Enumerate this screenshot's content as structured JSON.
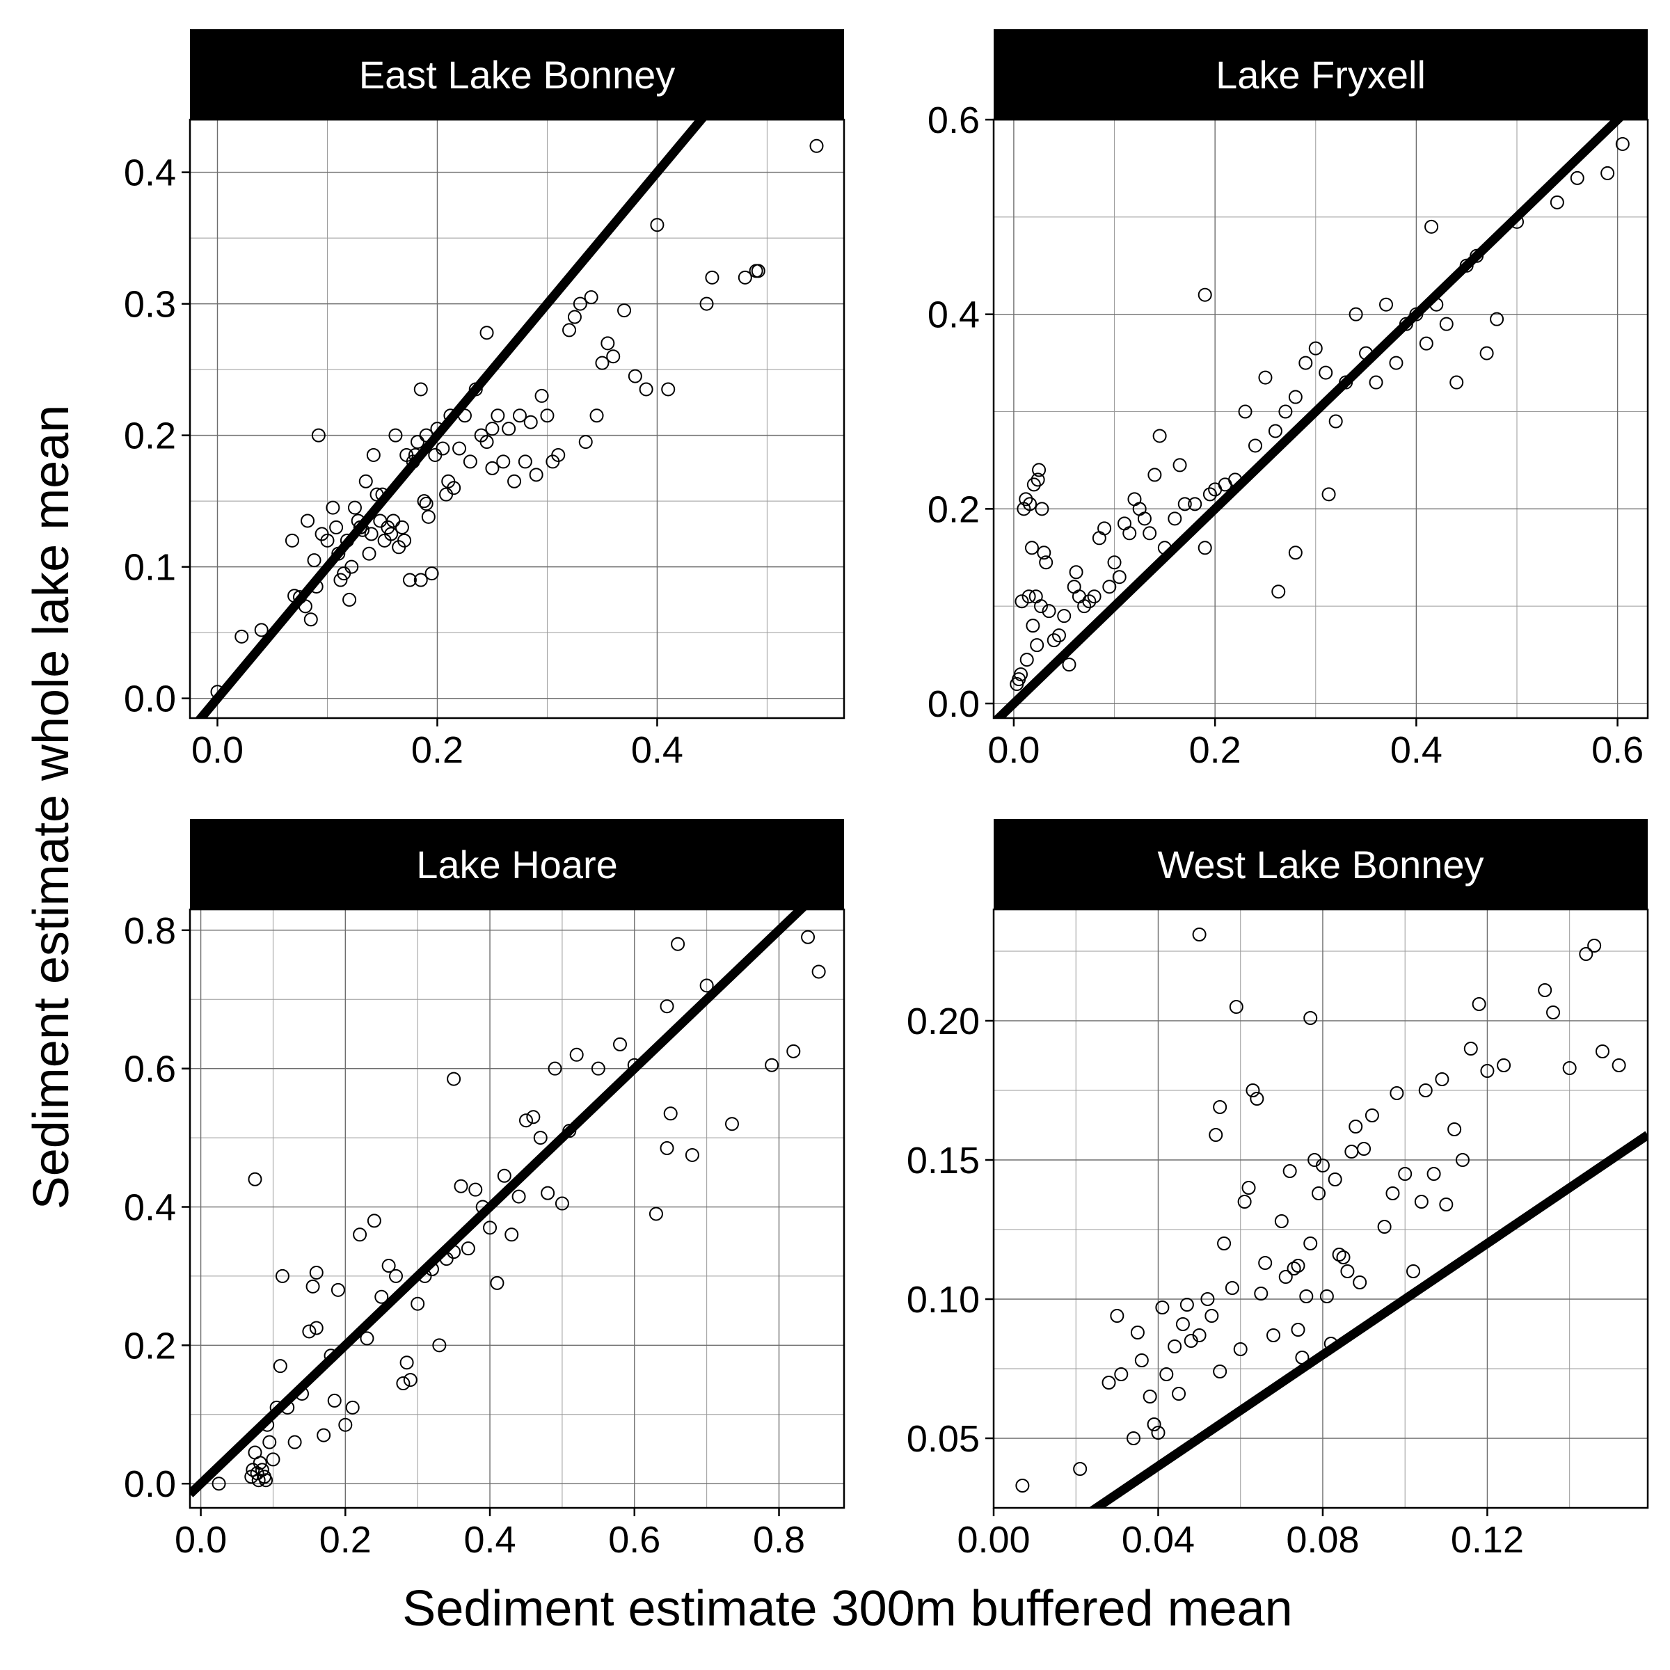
{
  "xlabel": "Sediment estimate 300m buffered mean",
  "ylabel": "Sediment estimate whole lake mean",
  "chart_data": [
    {
      "type": "scatter",
      "title": "East Lake Bonney",
      "xlim": [
        -0.025,
        0.57
      ],
      "ylim": [
        -0.015,
        0.44
      ],
      "xticks": [
        0.0,
        0.2,
        0.4
      ],
      "xtick_labels": [
        "0.0",
        "0.2",
        "0.4"
      ],
      "yticks": [
        0.0,
        0.1,
        0.2,
        0.3,
        0.4
      ],
      "ytick_labels": [
        "0.0",
        "0.1",
        "0.2",
        "0.3",
        "0.4"
      ],
      "xminor": [
        0.1,
        0.3,
        0.5
      ],
      "yminor": [
        0.05,
        0.15,
        0.25,
        0.35
      ],
      "reference_line": {
        "slope": 1,
        "intercept": 0
      },
      "x": [
        0.0,
        0.022,
        0.04,
        0.068,
        0.07,
        0.075,
        0.08,
        0.085,
        0.082,
        0.09,
        0.088,
        0.092,
        0.095,
        0.1,
        0.105,
        0.108,
        0.11,
        0.112,
        0.115,
        0.118,
        0.12,
        0.122,
        0.125,
        0.128,
        0.13,
        0.132,
        0.135,
        0.138,
        0.14,
        0.142,
        0.145,
        0.148,
        0.15,
        0.152,
        0.155,
        0.158,
        0.16,
        0.162,
        0.165,
        0.168,
        0.17,
        0.172,
        0.175,
        0.178,
        0.18,
        0.182,
        0.185,
        0.188,
        0.19,
        0.192,
        0.195,
        0.198,
        0.2,
        0.205,
        0.208,
        0.21,
        0.212,
        0.215,
        0.22,
        0.225,
        0.23,
        0.235,
        0.24,
        0.245,
        0.25,
        0.255,
        0.26,
        0.265,
        0.27,
        0.275,
        0.28,
        0.285,
        0.29,
        0.295,
        0.3,
        0.305,
        0.31,
        0.32,
        0.325,
        0.33,
        0.335,
        0.34,
        0.345,
        0.35,
        0.355,
        0.36,
        0.37,
        0.38,
        0.39,
        0.4,
        0.41,
        0.445,
        0.45,
        0.48,
        0.49,
        0.492,
        0.545,
        0.19,
        0.245,
        0.13,
        0.25,
        0.185
      ],
      "y": [
        0.005,
        0.047,
        0.052,
        0.12,
        0.078,
        0.077,
        0.07,
        0.06,
        0.135,
        0.085,
        0.105,
        0.2,
        0.125,
        0.12,
        0.145,
        0.13,
        0.11,
        0.09,
        0.095,
        0.12,
        0.075,
        0.1,
        0.145,
        0.135,
        0.13,
        0.128,
        0.165,
        0.11,
        0.125,
        0.185,
        0.155,
        0.135,
        0.155,
        0.12,
        0.13,
        0.125,
        0.135,
        0.2,
        0.115,
        0.13,
        0.12,
        0.185,
        0.09,
        0.18,
        0.185,
        0.195,
        0.235,
        0.15,
        0.2,
        0.138,
        0.095,
        0.185,
        0.205,
        0.19,
        0.155,
        0.165,
        0.215,
        0.16,
        0.19,
        0.215,
        0.18,
        0.235,
        0.2,
        0.195,
        0.175,
        0.215,
        0.18,
        0.205,
        0.165,
        0.215,
        0.18,
        0.21,
        0.17,
        0.23,
        0.215,
        0.18,
        0.185,
        0.28,
        0.29,
        0.3,
        0.195,
        0.305,
        0.215,
        0.255,
        0.27,
        0.26,
        0.295,
        0.245,
        0.235,
        0.36,
        0.235,
        0.3,
        0.32,
        0.32,
        0.325,
        0.325,
        0.42,
        0.148,
        0.278,
        0.13,
        0.205,
        0.09
      ]
    },
    {
      "type": "scatter",
      "title": "Lake Fryxell",
      "xlim": [
        -0.02,
        0.63
      ],
      "ylim": [
        -0.015,
        0.6
      ],
      "xticks": [
        0.0,
        0.2,
        0.4,
        0.6
      ],
      "xtick_labels": [
        "0.0",
        "0.2",
        "0.4",
        "0.6"
      ],
      "yticks": [
        0.0,
        0.2,
        0.4,
        0.6
      ],
      "ytick_labels": [
        "0.0",
        "0.2",
        "0.4",
        "0.6"
      ],
      "xminor": [
        0.1,
        0.3,
        0.5
      ],
      "yminor": [
        0.1,
        0.3,
        0.5
      ],
      "reference_line": {
        "slope": 1,
        "intercept": 0
      },
      "x": [
        0.003,
        0.005,
        0.007,
        0.008,
        0.01,
        0.012,
        0.013,
        0.015,
        0.016,
        0.018,
        0.019,
        0.02,
        0.022,
        0.023,
        0.024,
        0.025,
        0.027,
        0.028,
        0.03,
        0.032,
        0.035,
        0.04,
        0.045,
        0.05,
        0.055,
        0.06,
        0.062,
        0.065,
        0.07,
        0.075,
        0.08,
        0.085,
        0.09,
        0.095,
        0.1,
        0.105,
        0.11,
        0.115,
        0.12,
        0.125,
        0.13,
        0.135,
        0.14,
        0.145,
        0.15,
        0.16,
        0.165,
        0.17,
        0.18,
        0.19,
        0.195,
        0.2,
        0.21,
        0.22,
        0.23,
        0.24,
        0.25,
        0.26,
        0.27,
        0.28,
        0.29,
        0.3,
        0.31,
        0.32,
        0.33,
        0.34,
        0.35,
        0.36,
        0.37,
        0.38,
        0.39,
        0.4,
        0.41,
        0.42,
        0.43,
        0.44,
        0.45,
        0.46,
        0.47,
        0.48,
        0.5,
        0.54,
        0.56,
        0.59,
        0.605,
        0.19,
        0.415,
        0.263,
        0.28,
        0.313
      ],
      "y": [
        0.02,
        0.025,
        0.03,
        0.105,
        0.2,
        0.21,
        0.045,
        0.11,
        0.205,
        0.16,
        0.08,
        0.225,
        0.11,
        0.06,
        0.23,
        0.24,
        0.1,
        0.2,
        0.155,
        0.145,
        0.095,
        0.065,
        0.07,
        0.09,
        0.04,
        0.12,
        0.135,
        0.11,
        0.1,
        0.105,
        0.11,
        0.17,
        0.18,
        0.12,
        0.145,
        0.13,
        0.185,
        0.175,
        0.21,
        0.2,
        0.19,
        0.175,
        0.235,
        0.275,
        0.16,
        0.19,
        0.245,
        0.205,
        0.205,
        0.16,
        0.215,
        0.22,
        0.225,
        0.23,
        0.3,
        0.265,
        0.335,
        0.28,
        0.3,
        0.315,
        0.35,
        0.365,
        0.34,
        0.29,
        0.33,
        0.4,
        0.36,
        0.33,
        0.41,
        0.35,
        0.39,
        0.4,
        0.37,
        0.41,
        0.39,
        0.33,
        0.45,
        0.46,
        0.36,
        0.395,
        0.495,
        0.515,
        0.54,
        0.545,
        0.575,
        0.42,
        0.49,
        0.115,
        0.155,
        0.215
      ]
    },
    {
      "type": "scatter",
      "title": "Lake Hoare",
      "xlim": [
        -0.015,
        0.89
      ],
      "ylim": [
        -0.035,
        0.83
      ],
      "xticks": [
        0.0,
        0.2,
        0.4,
        0.6,
        0.8
      ],
      "xtick_labels": [
        "0.0",
        "0.2",
        "0.4",
        "0.6",
        "0.8"
      ],
      "yticks": [
        0.0,
        0.2,
        0.4,
        0.6,
        0.8
      ],
      "ytick_labels": [
        "0.0",
        "0.2",
        "0.4",
        "0.6",
        "0.8"
      ],
      "xminor": [
        0.1,
        0.3,
        0.5,
        0.7
      ],
      "yminor": [
        0.1,
        0.3,
        0.5,
        0.7
      ],
      "reference_line": {
        "slope": 1,
        "intercept": 0
      },
      "x": [
        0.025,
        0.07,
        0.072,
        0.075,
        0.078,
        0.08,
        0.082,
        0.085,
        0.088,
        0.09,
        0.092,
        0.095,
        0.1,
        0.105,
        0.11,
        0.12,
        0.13,
        0.14,
        0.15,
        0.155,
        0.16,
        0.17,
        0.18,
        0.185,
        0.19,
        0.2,
        0.21,
        0.22,
        0.23,
        0.24,
        0.25,
        0.26,
        0.27,
        0.28,
        0.285,
        0.29,
        0.3,
        0.31,
        0.32,
        0.33,
        0.34,
        0.35,
        0.36,
        0.37,
        0.38,
        0.39,
        0.4,
        0.41,
        0.42,
        0.43,
        0.44,
        0.45,
        0.46,
        0.47,
        0.48,
        0.49,
        0.5,
        0.51,
        0.52,
        0.55,
        0.58,
        0.6,
        0.63,
        0.645,
        0.65,
        0.66,
        0.68,
        0.7,
        0.735,
        0.79,
        0.82,
        0.84,
        0.855,
        0.075,
        0.35,
        0.645,
        0.113,
        0.16
      ],
      "y": [
        0.0,
        0.01,
        0.02,
        0.045,
        0.015,
        0.005,
        0.03,
        0.02,
        0.01,
        0.005,
        0.085,
        0.06,
        0.035,
        0.11,
        0.17,
        0.11,
        0.06,
        0.13,
        0.22,
        0.285,
        0.305,
        0.07,
        0.185,
        0.12,
        0.28,
        0.085,
        0.11,
        0.36,
        0.21,
        0.38,
        0.27,
        0.315,
        0.3,
        0.145,
        0.175,
        0.15,
        0.26,
        0.3,
        0.31,
        0.2,
        0.325,
        0.335,
        0.43,
        0.34,
        0.425,
        0.4,
        0.37,
        0.29,
        0.445,
        0.36,
        0.415,
        0.525,
        0.53,
        0.5,
        0.42,
        0.6,
        0.405,
        0.51,
        0.62,
        0.6,
        0.635,
        0.605,
        0.39,
        0.485,
        0.535,
        0.78,
        0.475,
        0.72,
        0.52,
        0.605,
        0.625,
        0.79,
        0.74,
        0.44,
        0.585,
        0.69,
        0.3,
        0.225
      ]
    },
    {
      "type": "scatter",
      "title": "West Lake Bonney",
      "xlim": [
        0.0,
        0.159
      ],
      "ylim": [
        0.025,
        0.24
      ],
      "xticks": [
        0.0,
        0.04,
        0.08,
        0.12
      ],
      "xtick_labels": [
        "0.00",
        "0.04",
        "0.08",
        "0.12"
      ],
      "yticks": [
        0.05,
        0.1,
        0.15,
        0.2
      ],
      "ytick_labels": [
        "0.05",
        "0.10",
        "0.15",
        "0.20"
      ],
      "xminor": [
        0.02,
        0.06,
        0.1,
        0.14
      ],
      "yminor": [
        0.075,
        0.125,
        0.175,
        0.225
      ],
      "reference_line": {
        "slope": 1,
        "intercept": 0
      },
      "x": [
        0.007,
        0.021,
        0.028,
        0.03,
        0.031,
        0.034,
        0.035,
        0.036,
        0.038,
        0.039,
        0.04,
        0.041,
        0.042,
        0.044,
        0.045,
        0.046,
        0.047,
        0.048,
        0.05,
        0.052,
        0.053,
        0.054,
        0.055,
        0.056,
        0.058,
        0.06,
        0.061,
        0.062,
        0.063,
        0.064,
        0.065,
        0.066,
        0.068,
        0.07,
        0.071,
        0.072,
        0.073,
        0.074,
        0.075,
        0.076,
        0.077,
        0.078,
        0.079,
        0.08,
        0.081,
        0.082,
        0.083,
        0.084,
        0.085,
        0.086,
        0.087,
        0.088,
        0.089,
        0.09,
        0.092,
        0.095,
        0.097,
        0.098,
        0.1,
        0.102,
        0.104,
        0.105,
        0.107,
        0.109,
        0.11,
        0.112,
        0.114,
        0.116,
        0.118,
        0.12,
        0.124,
        0.134,
        0.136,
        0.14,
        0.144,
        0.146,
        0.148,
        0.152,
        0.05,
        0.059,
        0.077,
        0.055,
        0.074
      ],
      "y": [
        0.033,
        0.039,
        0.07,
        0.094,
        0.073,
        0.05,
        0.088,
        0.078,
        0.065,
        0.055,
        0.052,
        0.097,
        0.073,
        0.083,
        0.066,
        0.091,
        0.098,
        0.085,
        0.087,
        0.1,
        0.094,
        0.159,
        0.074,
        0.12,
        0.104,
        0.082,
        0.135,
        0.14,
        0.175,
        0.172,
        0.102,
        0.113,
        0.087,
        0.128,
        0.108,
        0.146,
        0.111,
        0.112,
        0.079,
        0.101,
        0.12,
        0.15,
        0.138,
        0.148,
        0.101,
        0.084,
        0.143,
        0.116,
        0.115,
        0.11,
        0.153,
        0.162,
        0.106,
        0.154,
        0.166,
        0.126,
        0.138,
        0.174,
        0.145,
        0.11,
        0.135,
        0.175,
        0.145,
        0.179,
        0.134,
        0.161,
        0.15,
        0.19,
        0.206,
        0.182,
        0.184,
        0.211,
        0.203,
        0.183,
        0.224,
        0.227,
        0.189,
        0.184,
        0.231,
        0.205,
        0.201,
        0.169,
        0.089
      ]
    }
  ]
}
